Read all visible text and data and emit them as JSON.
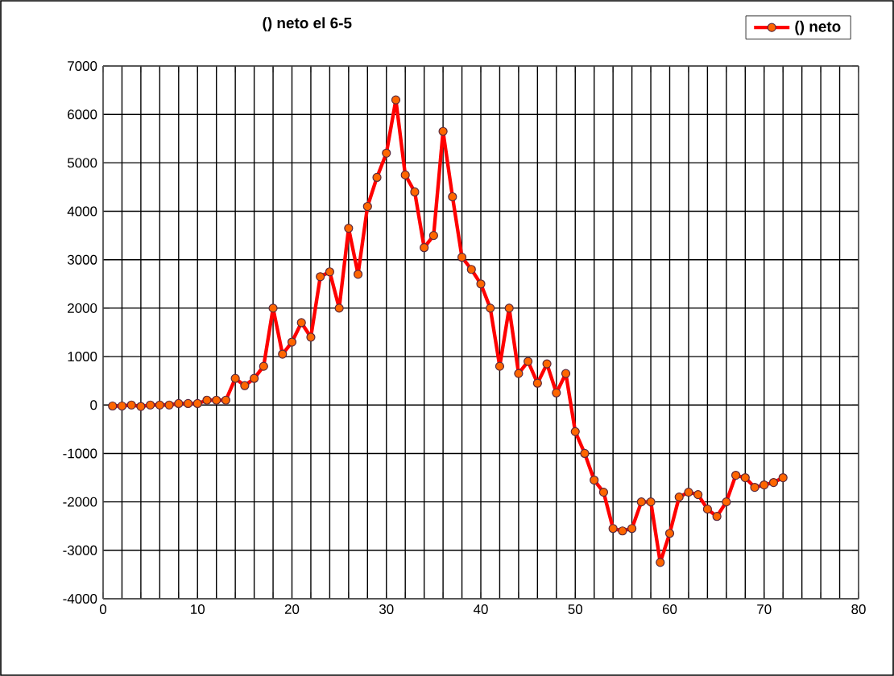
{
  "chart_data": {
    "type": "line",
    "title": "() neto el 6-5",
    "x": [
      1,
      2,
      3,
      4,
      5,
      6,
      7,
      8,
      9,
      10,
      11,
      12,
      13,
      14,
      15,
      16,
      17,
      18,
      19,
      20,
      21,
      22,
      23,
      24,
      25,
      26,
      27,
      28,
      29,
      30,
      31,
      32,
      33,
      34,
      35,
      36,
      37,
      38,
      39,
      40,
      41,
      42,
      43,
      44,
      45,
      46,
      47,
      48,
      49,
      50,
      51,
      52,
      53,
      54,
      55,
      56,
      57,
      58,
      59,
      60,
      61,
      62,
      63,
      64,
      65,
      66,
      67,
      68,
      69,
      70,
      71,
      72
    ],
    "series": [
      {
        "name": "() neto",
        "color": "#ff0000",
        "values": [
          -20,
          -20,
          0,
          -30,
          0,
          0,
          0,
          30,
          30,
          30,
          100,
          100,
          100,
          550,
          400,
          550,
          800,
          2000,
          1050,
          1300,
          1700,
          1400,
          2650,
          2750,
          2000,
          3650,
          2700,
          4100,
          4700,
          5200,
          6300,
          4750,
          4400,
          3250,
          3500,
          5650,
          4300,
          3050,
          2800,
          2500,
          2000,
          800,
          2000,
          650,
          900,
          450,
          850,
          250,
          650,
          -550,
          -1000,
          -1550,
          -1800,
          -2550,
          -2600,
          -2550,
          -2000,
          -2000,
          -3250,
          -2650,
          -1900,
          -1800,
          -1850,
          -2150,
          -2300,
          -2000,
          -1450,
          -1500,
          -1700,
          -1650,
          -1600,
          -1500
        ]
      }
    ],
    "xlim": [
      0,
      80
    ],
    "xticks": [
      0,
      {
        "value": 2,
        "label": null
      },
      {
        "value": 4,
        "label": null
      },
      {
        "value": 6,
        "label": null
      },
      {
        "value": 8,
        "label": null
      },
      10,
      {
        "value": 12,
        "label": null
      },
      {
        "value": 14,
        "label": null
      },
      {
        "value": 16,
        "label": null
      },
      {
        "value": 18,
        "label": null
      },
      20,
      {
        "value": 22,
        "label": null
      },
      {
        "value": 24,
        "label": null
      },
      {
        "value": 26,
        "label": null
      },
      {
        "value": 28,
        "label": null
      },
      30,
      {
        "value": 32,
        "label": null
      },
      {
        "value": 34,
        "label": null
      },
      {
        "value": 36,
        "label": null
      },
      {
        "value": 38,
        "label": null
      },
      40,
      {
        "value": 42,
        "label": null
      },
      {
        "value": 44,
        "label": null
      },
      {
        "value": 46,
        "label": null
      },
      {
        "value": 48,
        "label": null
      },
      50,
      {
        "value": 52,
        "label": null
      },
      {
        "value": 54,
        "label": null
      },
      {
        "value": 56,
        "label": null
      },
      {
        "value": 58,
        "label": null
      },
      60,
      {
        "value": 62,
        "label": null
      },
      {
        "value": 64,
        "label": null
      },
      {
        "value": 66,
        "label": null
      },
      {
        "value": 68,
        "label": null
      },
      70,
      {
        "value": 72,
        "label": null
      },
      {
        "value": 74,
        "label": null
      },
      {
        "value": 76,
        "label": null
      },
      {
        "value": 78,
        "label": null
      },
      80
    ],
    "ylim": [
      -4000,
      7000
    ],
    "yticks": [
      -4000,
      -3000,
      -2000,
      -1000,
      0,
      1000,
      2000,
      3000,
      4000,
      5000,
      6000,
      7000
    ],
    "grid": true,
    "legend": "top right",
    "marker": "circle",
    "line_style": "solid"
  }
}
